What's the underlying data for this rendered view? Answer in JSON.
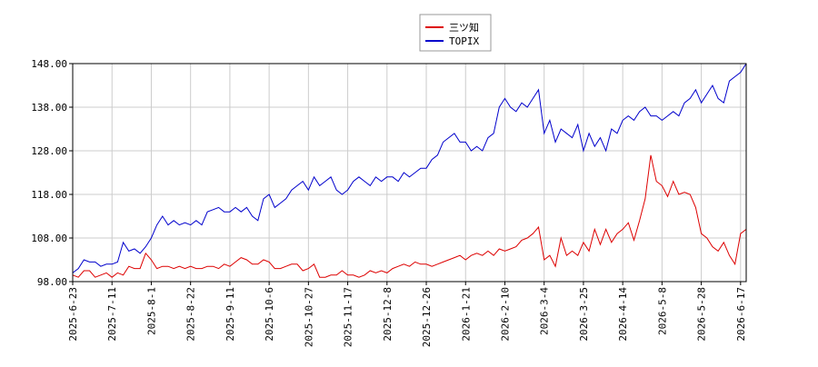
{
  "chart_data": {
    "type": "line",
    "categories": [
      "2025-6-23",
      null,
      null,
      null,
      null,
      null,
      null,
      "2025-7-11",
      null,
      null,
      null,
      null,
      null,
      null,
      "2025-8-1",
      null,
      null,
      null,
      null,
      null,
      null,
      "2025-8-22",
      null,
      null,
      null,
      null,
      null,
      null,
      "2025-9-11",
      null,
      null,
      null,
      null,
      null,
      null,
      "2025-10-6",
      null,
      null,
      null,
      null,
      null,
      null,
      "2025-10-27",
      null,
      null,
      null,
      null,
      null,
      null,
      "2025-11-17",
      null,
      null,
      null,
      null,
      null,
      null,
      "2025-12-8",
      null,
      null,
      null,
      null,
      null,
      null,
      "2025-12-26",
      null,
      null,
      null,
      null,
      null,
      null,
      "2026-1-21",
      null,
      null,
      null,
      null,
      null,
      null,
      "2026-2-10",
      null,
      null,
      null,
      null,
      null,
      null,
      "2026-3-4",
      null,
      null,
      null,
      null,
      null,
      null,
      "2026-3-25",
      null,
      null,
      null,
      null,
      null,
      null,
      "2026-4-14",
      null,
      null,
      null,
      null,
      null,
      null,
      "2026-5-8",
      null,
      null,
      null,
      null,
      null,
      null,
      "2026-5-28",
      null,
      null,
      null,
      null,
      null,
      null,
      "2026-6-17",
      null
    ],
    "series": [
      {
        "name": "三ツ知",
        "color": "#dd0000",
        "values": [
          99.5,
          99,
          100.5,
          100.5,
          99,
          99.5,
          100,
          99,
          100,
          99.5,
          101.5,
          101,
          101,
          104.5,
          103,
          101,
          101.5,
          101.5,
          101,
          101.5,
          101,
          101.5,
          101,
          101,
          101.5,
          101.5,
          101,
          102,
          101.5,
          102.5,
          103.5,
          103,
          102,
          102,
          103,
          102.5,
          101,
          101,
          101.5,
          102,
          102,
          100.5,
          101,
          102,
          99,
          99,
          99.5,
          99.5,
          100.5,
          99.5,
          99.5,
          99,
          99.5,
          100.5,
          100,
          100.5,
          100,
          101,
          101.5,
          102,
          101.5,
          102.5,
          102,
          102,
          101.5,
          102,
          102.5,
          103,
          103.5,
          104,
          103,
          104,
          104.5,
          104,
          105,
          104,
          105.5,
          105,
          105.5,
          106,
          107.5,
          108,
          109,
          110.5,
          103,
          104,
          101.5,
          108,
          104,
          105,
          104,
          107,
          105,
          110,
          106.5,
          110,
          107,
          109,
          110,
          111.5,
          107.5,
          112,
          117,
          127,
          121,
          120,
          117.5,
          121,
          118,
          118.5,
          118,
          115,
          109,
          108,
          106,
          105,
          107,
          104,
          102,
          109,
          110
        ]
      },
      {
        "name": "TOPIX",
        "color": "#0000cc",
        "values": [
          100,
          101,
          103,
          102.5,
          102.5,
          101.5,
          102,
          102,
          102.5,
          107,
          105,
          105.5,
          104.5,
          106,
          108,
          111,
          113,
          111,
          112,
          111,
          111.5,
          111,
          112,
          111,
          114,
          114.5,
          115,
          114,
          114,
          115,
          114,
          115,
          113,
          112,
          117,
          118,
          115,
          116,
          117,
          119,
          120,
          121,
          119,
          122,
          120,
          121,
          122,
          119,
          118,
          119,
          121,
          122,
          121,
          120,
          122,
          121,
          122,
          122,
          121,
          123,
          122,
          123,
          124,
          124,
          126,
          127,
          130,
          131,
          132,
          130,
          130,
          128,
          129,
          128,
          131,
          132,
          138,
          140,
          138,
          137,
          139,
          138,
          140,
          142,
          132,
          135,
          130,
          133,
          132,
          131,
          134,
          128,
          132,
          129,
          131,
          128,
          133,
          132,
          135,
          136,
          135,
          137,
          138,
          136,
          136,
          135,
          136,
          137,
          136,
          139,
          140,
          142,
          139,
          141,
          143,
          140,
          139,
          144,
          145,
          146,
          148
        ]
      }
    ],
    "ylim": [
      98,
      148
    ],
    "yticks": [
      {
        "value": 98,
        "label": "98.00"
      },
      {
        "value": 108,
        "label": "108.00"
      },
      {
        "value": 118,
        "label": "118.00"
      },
      {
        "value": 128,
        "label": "128.00"
      },
      {
        "value": 138,
        "label": "138.00"
      },
      {
        "value": 148,
        "label": "148.00"
      }
    ],
    "grid": true
  }
}
